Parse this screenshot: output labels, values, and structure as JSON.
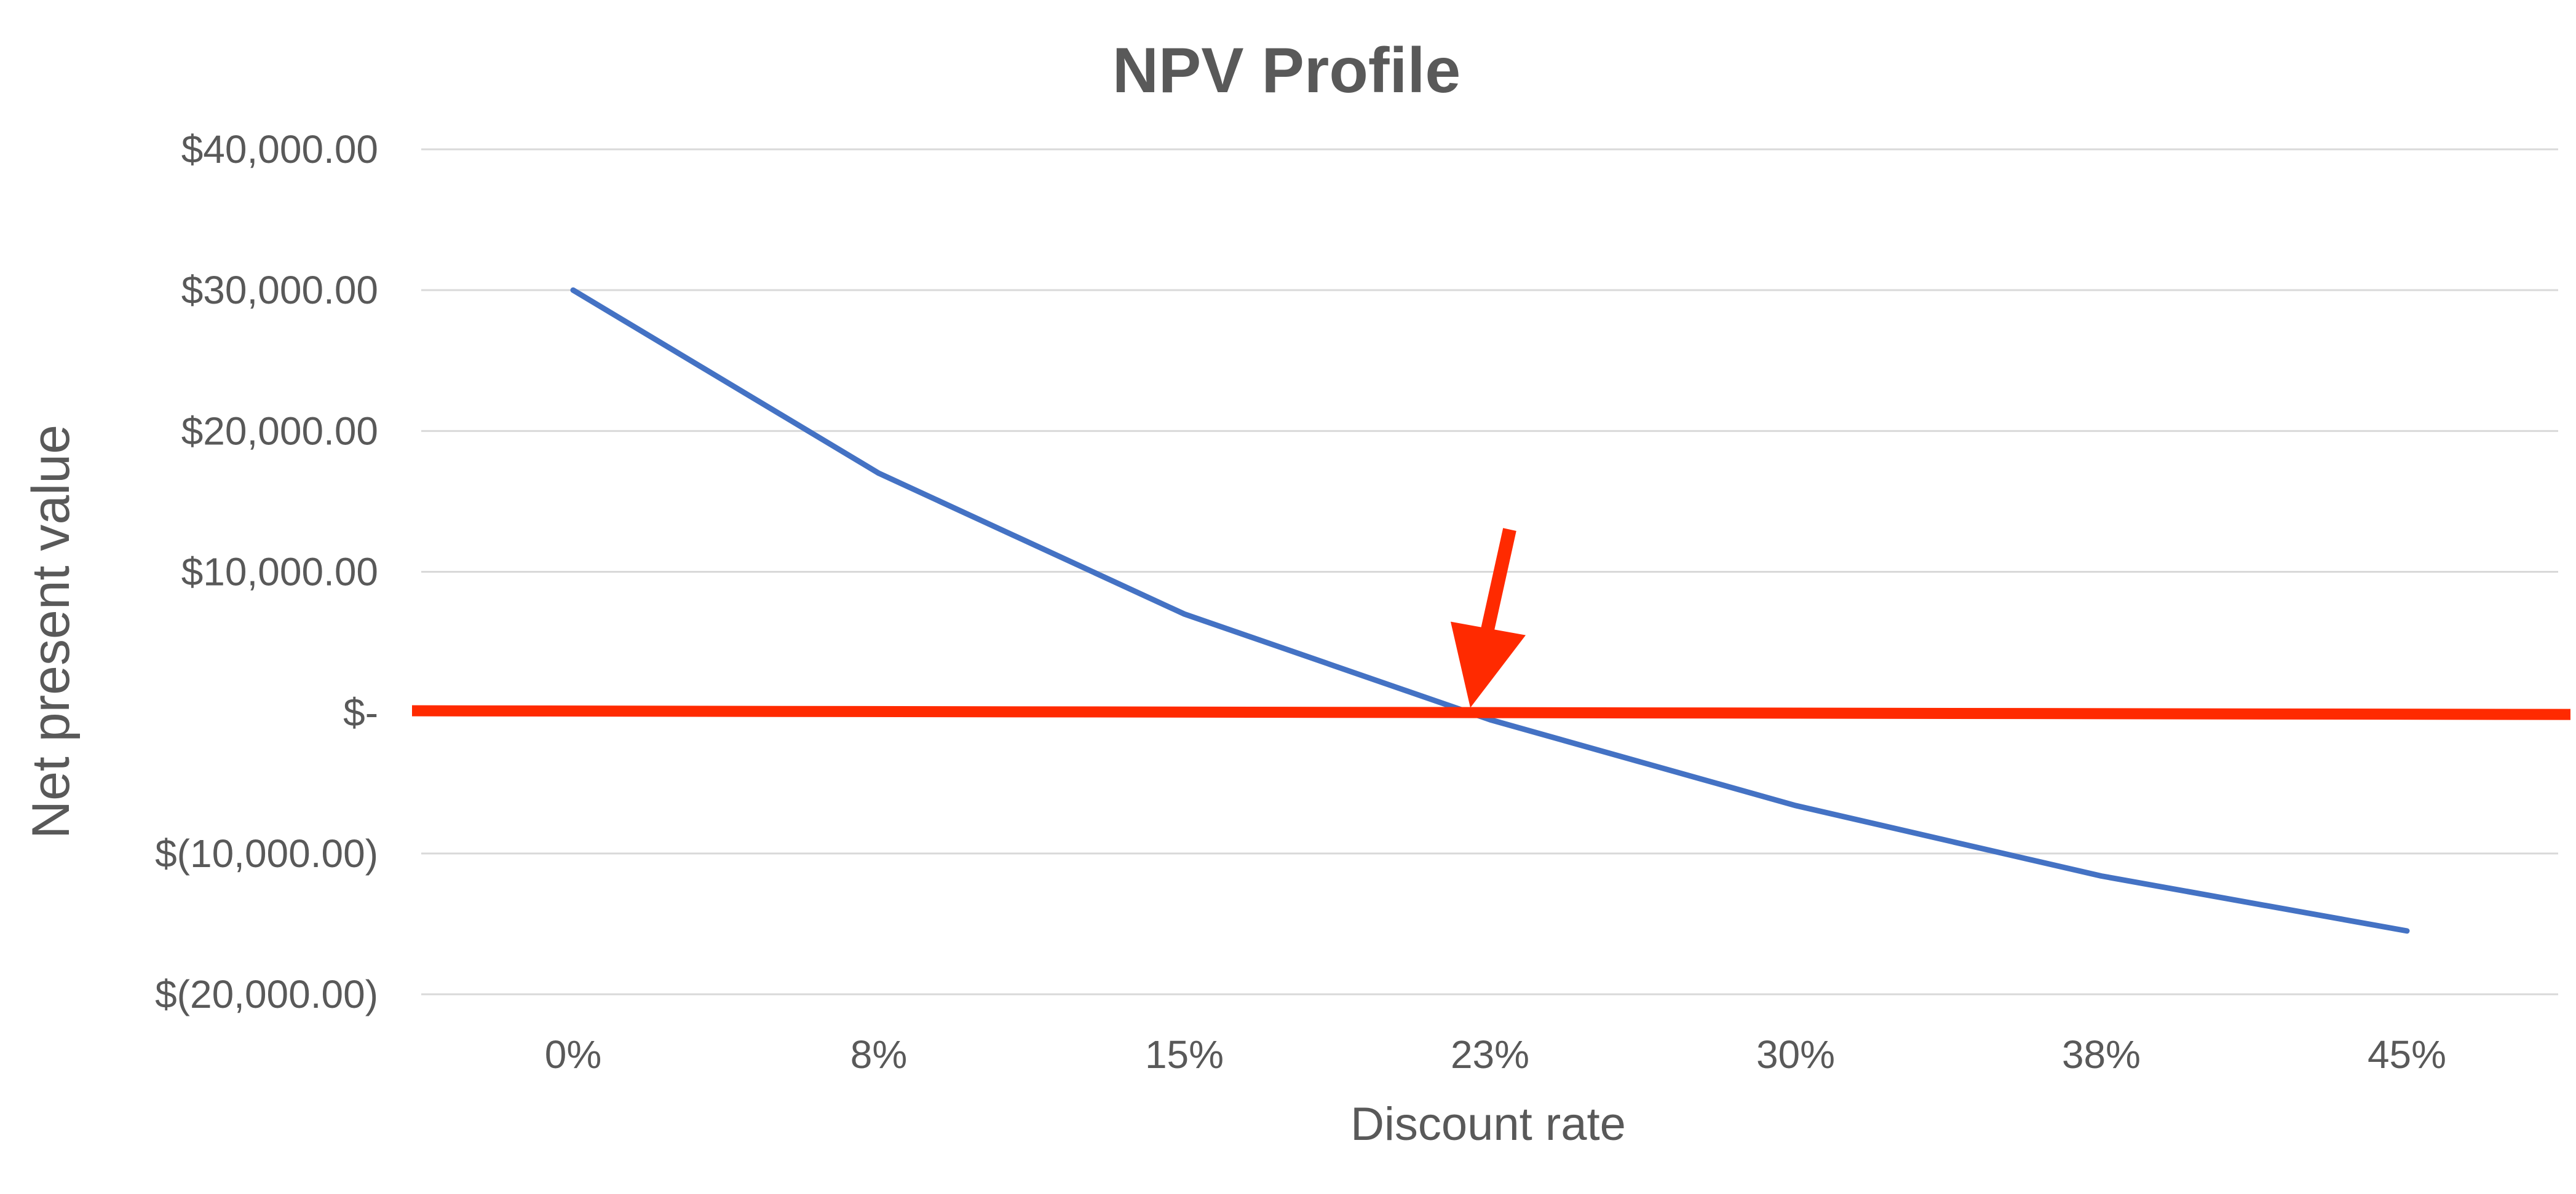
{
  "chart_data": {
    "type": "line",
    "title": "NPV Profile",
    "xlabel": "Discount rate",
    "ylabel": "Net present value",
    "categories": [
      "0%",
      "8%",
      "15%",
      "23%",
      "30%",
      "38%",
      "45%"
    ],
    "series": [
      {
        "color": "#4472C4",
        "values": [
          30000,
          17000,
          7000,
          -500,
          -6600,
          -11600,
          -15500
        ]
      }
    ],
    "ylim": [
      -20000,
      40000
    ],
    "ytick_values": [
      40000,
      30000,
      20000,
      10000,
      0,
      -10000,
      -20000
    ],
    "ytick_labels": [
      "$40,000.00",
      "$30,000.00",
      "$20,000.00",
      "$10,000.00",
      "$-",
      "$(10,000.00)",
      "$(20,000.00)"
    ],
    "grid": true,
    "legend": "none",
    "annotations": [
      {
        "type": "horizontal-line",
        "y": 0,
        "color": "#FF2A00"
      },
      {
        "type": "arrow",
        "points_to": "23%",
        "y": 0,
        "color": "#FF2A00"
      }
    ]
  }
}
